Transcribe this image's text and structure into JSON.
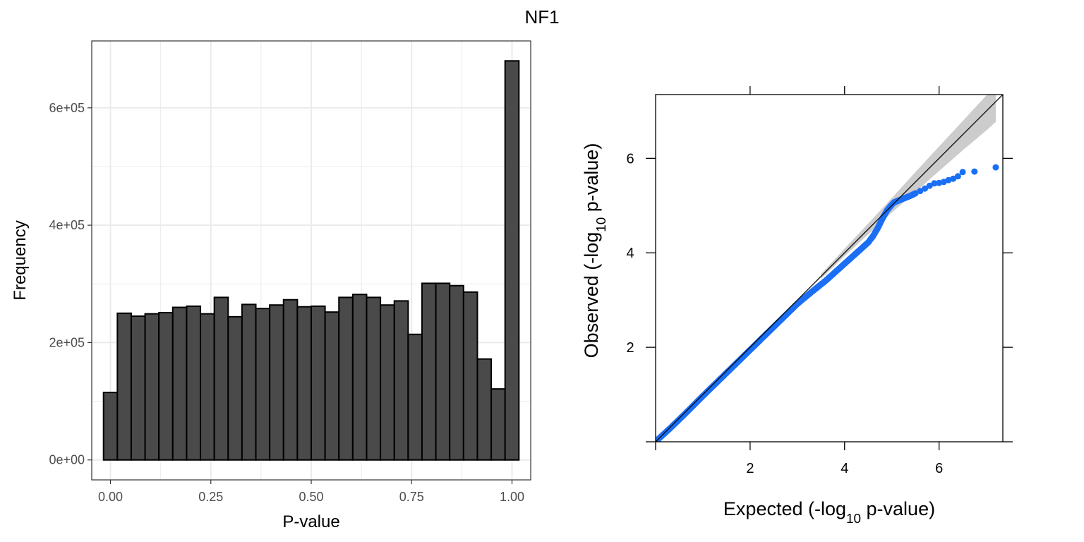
{
  "title": "NF1",
  "chart_data": [
    {
      "type": "bar",
      "xlabel": "P-value",
      "ylabel": "Frequency",
      "xlim": [
        -0.0466,
        1.0466
      ],
      "ylim": [
        -34000,
        714000
      ],
      "x_ticks": [
        {
          "value": 0.0,
          "label": "0.00"
        },
        {
          "value": 0.25,
          "label": "0.25"
        },
        {
          "value": 0.5,
          "label": "0.50"
        },
        {
          "value": 0.75,
          "label": "0.75"
        },
        {
          "value": 1.0,
          "label": "1.00"
        }
      ],
      "y_ticks": [
        {
          "value": 0,
          "label": "0e+00"
        },
        {
          "value": 200000,
          "label": "2e+05"
        },
        {
          "value": 400000,
          "label": "4e+05"
        },
        {
          "value": 600000,
          "label": "6e+05"
        }
      ],
      "bin_width": 0.03448,
      "bin_centers": [
        0.0,
        0.03448,
        0.06897,
        0.10345,
        0.13793,
        0.17241,
        0.2069,
        0.24138,
        0.27586,
        0.31034,
        0.34483,
        0.37931,
        0.41379,
        0.44828,
        0.48276,
        0.51724,
        0.55172,
        0.58621,
        0.62069,
        0.65517,
        0.68966,
        0.72414,
        0.75862,
        0.7931,
        0.82759,
        0.86207,
        0.89655,
        0.93103,
        0.96552,
        1.0
      ],
      "values": [
        115000,
        250000,
        245000,
        249000,
        251000,
        260000,
        262000,
        249000,
        277000,
        244000,
        265000,
        258000,
        264000,
        273000,
        261000,
        262000,
        252000,
        277000,
        282000,
        277000,
        264000,
        271000,
        214000,
        301000,
        301000,
        297000,
        286000,
        172000,
        121000,
        680000
      ],
      "grid": true,
      "bar_fill": "#4a4a4a",
      "bar_stroke": "#000000",
      "grid_color": "#ebebeb"
    },
    {
      "type": "scatter",
      "xlabel": "Expected (-log10 p-value)",
      "ylabel": "Observed (-log10 p-value)",
      "xlim": [
        0,
        7.35
      ],
      "ylim": [
        0,
        7.35
      ],
      "x_ticks": [
        {
          "value": 2,
          "label": "2"
        },
        {
          "value": 4,
          "label": "4"
        },
        {
          "value": 6,
          "label": "6"
        }
      ],
      "y_ticks": [
        {
          "value": 2,
          "label": "2"
        },
        {
          "value": 4,
          "label": "4"
        },
        {
          "value": 6,
          "label": "6"
        }
      ],
      "reference_line": "identity",
      "confidence_band": {
        "x": [
          3.5,
          4.0,
          4.5,
          5.0,
          5.5,
          6.0,
          6.5,
          7.0,
          7.2
        ],
        "upper": [
          3.55,
          4.09,
          4.62,
          5.16,
          5.71,
          6.25,
          6.79,
          7.33,
          7.45
        ],
        "lower": [
          3.45,
          3.93,
          4.39,
          4.85,
          5.29,
          5.73,
          6.17,
          6.59,
          6.77
        ]
      },
      "points": {
        "x": [
          0.05,
          0.3,
          0.6,
          1.0,
          1.4,
          1.8,
          2.2,
          2.6,
          3.0,
          3.3,
          3.6,
          3.8,
          4.0,
          4.2,
          4.4,
          4.5,
          4.6,
          4.7,
          4.8,
          4.9,
          5.0,
          5.05,
          5.1,
          5.2,
          5.3,
          5.4,
          5.5,
          5.6,
          5.7,
          5.8,
          5.9,
          6.0,
          6.1,
          6.2,
          6.3,
          6.4,
          6.5,
          6.75,
          7.2
        ],
        "y": [
          0.05,
          0.28,
          0.57,
          0.97,
          1.36,
          1.75,
          2.14,
          2.53,
          2.92,
          3.17,
          3.41,
          3.59,
          3.77,
          3.95,
          4.13,
          4.22,
          4.35,
          4.52,
          4.72,
          4.9,
          5.02,
          5.07,
          5.09,
          5.13,
          5.17,
          5.21,
          5.26,
          5.31,
          5.36,
          5.42,
          5.47,
          5.48,
          5.5,
          5.54,
          5.57,
          5.62,
          5.71,
          5.72,
          5.81
        ]
      },
      "point_color": "#1a6ff5"
    }
  ]
}
